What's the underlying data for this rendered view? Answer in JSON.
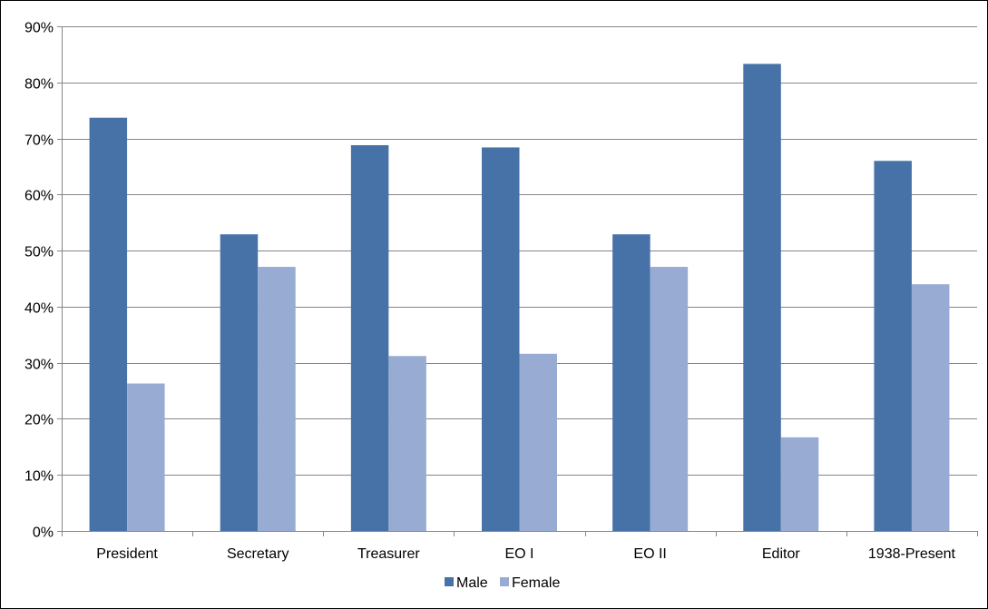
{
  "chart_data": {
    "type": "bar",
    "title": "",
    "xlabel": "",
    "ylabel": "",
    "categories": [
      "President",
      "Secretary",
      "Treasurer",
      "EO I",
      "EO II",
      "Editor",
      "1938-Present"
    ],
    "series": [
      {
        "name": "Male",
        "color": "#4672A8",
        "values": [
          73.7,
          52.9,
          68.8,
          68.4,
          52.9,
          83.3,
          66.0
        ]
      },
      {
        "name": "Female",
        "color": "#98ACD3",
        "values": [
          26.3,
          47.1,
          31.2,
          31.6,
          47.1,
          16.7,
          44.0
        ]
      }
    ],
    "ylim": [
      0,
      90
    ],
    "y_ticks": [
      0,
      10,
      20,
      30,
      40,
      50,
      60,
      70,
      80,
      90
    ],
    "y_tick_labels": [
      "0%",
      "10%",
      "20%",
      "30%",
      "40%",
      "50%",
      "60%",
      "70%",
      "80%",
      "90%"
    ],
    "grid": true,
    "grid_color": "#868686",
    "axis_color": "#868686",
    "legend_position": "bottom"
  }
}
